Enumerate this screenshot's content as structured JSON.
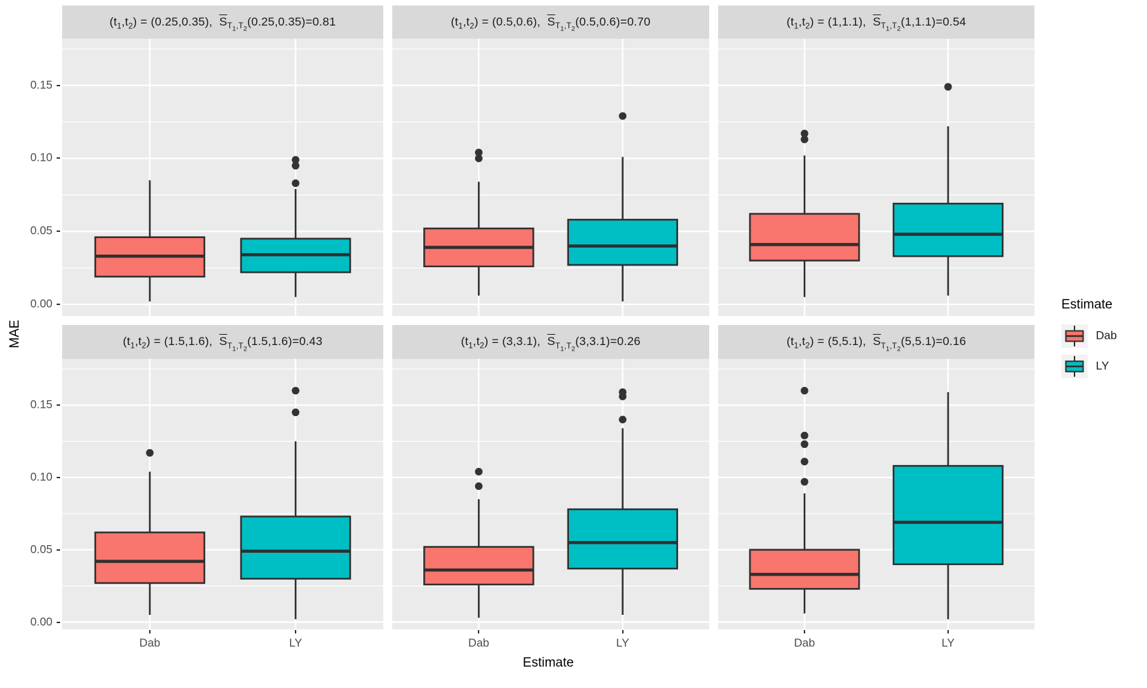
{
  "colors": {
    "dab_fill": "#F8766D",
    "ly_fill": "#00BFC4",
    "panel_bg": "#EBEBEB",
    "strip_bg": "#D9D9D9",
    "grid": "#FFFFFF",
    "box_stroke": "#2F2F2F",
    "outlier": "#333333",
    "axis_text": "#4D4D4D",
    "title_text": "#000000",
    "legend_key_bg": "#F2F2F2"
  },
  "chart_data": {
    "type": "boxplot",
    "facet_layout": {
      "rows": 2,
      "cols": 3
    },
    "categories": [
      "Dab",
      "LY"
    ],
    "xlabel": "Estimate",
    "ylabel": "MAE",
    "ylim": [
      -0.008,
      0.182
    ],
    "yticks": [
      {
        "v": 0.0,
        "label": "0.00"
      },
      {
        "v": 0.05,
        "label": "0.05"
      },
      {
        "v": 0.1,
        "label": "0.10"
      },
      {
        "v": 0.15,
        "label": "0.15"
      }
    ],
    "yminor": [
      0.025,
      0.075,
      0.125,
      0.175
    ],
    "grid": "white major+minor horizontal, white vertical at categories, on grey panel",
    "legend": {
      "title": "Estimate",
      "position": "right",
      "entries": [
        {
          "label": "Dab",
          "color": "#F8766D"
        },
        {
          "label": "LY",
          "color": "#00BFC4"
        }
      ]
    },
    "facet_title_template": "(t1,t2) = ({t1},{t2}),  S̄_T1,T2({t1},{t2})={sbar}",
    "facets": [
      {
        "t1": "0.25",
        "t2": "0.35",
        "sbar": "0.81",
        "boxes": [
          {
            "group": "Dab",
            "whisker_low": 0.002,
            "q1": 0.019,
            "median": 0.033,
            "q3": 0.046,
            "whisker_high": 0.085,
            "outliers": []
          },
          {
            "group": "LY",
            "whisker_low": 0.005,
            "q1": 0.022,
            "median": 0.034,
            "q3": 0.045,
            "whisker_high": 0.079,
            "outliers": [
              0.083,
              0.095,
              0.099
            ]
          }
        ]
      },
      {
        "t1": "0.5",
        "t2": "0.6",
        "sbar": "0.70",
        "boxes": [
          {
            "group": "Dab",
            "whisker_low": 0.006,
            "q1": 0.026,
            "median": 0.039,
            "q3": 0.052,
            "whisker_high": 0.084,
            "outliers": [
              0.1,
              0.104
            ]
          },
          {
            "group": "LY",
            "whisker_low": 0.002,
            "q1": 0.027,
            "median": 0.04,
            "q3": 0.058,
            "whisker_high": 0.101,
            "outliers": [
              0.129
            ]
          }
        ]
      },
      {
        "t1": "1",
        "t2": "1.1",
        "sbar": "0.54",
        "boxes": [
          {
            "group": "Dab",
            "whisker_low": 0.005,
            "q1": 0.03,
            "median": 0.041,
            "q3": 0.062,
            "whisker_high": 0.102,
            "outliers": [
              0.113,
              0.117
            ]
          },
          {
            "group": "LY",
            "whisker_low": 0.006,
            "q1": 0.033,
            "median": 0.048,
            "q3": 0.069,
            "whisker_high": 0.122,
            "outliers": [
              0.149
            ]
          }
        ]
      },
      {
        "t1": "1.5",
        "t2": "1.6",
        "sbar": "0.43",
        "boxes": [
          {
            "group": "Dab",
            "whisker_low": 0.005,
            "q1": 0.027,
            "median": 0.042,
            "q3": 0.062,
            "whisker_high": 0.104,
            "outliers": [
              0.117
            ]
          },
          {
            "group": "LY",
            "whisker_low": 0.002,
            "q1": 0.03,
            "median": 0.049,
            "q3": 0.073,
            "whisker_high": 0.125,
            "outliers": [
              0.145,
              0.16
            ]
          }
        ]
      },
      {
        "t1": "3",
        "t2": "3.1",
        "sbar": "0.26",
        "boxes": [
          {
            "group": "Dab",
            "whisker_low": 0.003,
            "q1": 0.026,
            "median": 0.036,
            "q3": 0.052,
            "whisker_high": 0.085,
            "outliers": [
              0.094,
              0.104
            ]
          },
          {
            "group": "LY",
            "whisker_low": 0.005,
            "q1": 0.037,
            "median": 0.055,
            "q3": 0.078,
            "whisker_high": 0.134,
            "outliers": [
              0.14,
              0.156,
              0.159
            ]
          }
        ]
      },
      {
        "t1": "5",
        "t2": "5.1",
        "sbar": "0.16",
        "boxes": [
          {
            "group": "Dab",
            "whisker_low": 0.006,
            "q1": 0.023,
            "median": 0.033,
            "q3": 0.05,
            "whisker_high": 0.089,
            "outliers": [
              0.097,
              0.111,
              0.123,
              0.129,
              0.16
            ]
          },
          {
            "group": "LY",
            "whisker_low": 0.002,
            "q1": 0.04,
            "median": 0.069,
            "q3": 0.108,
            "whisker_high": 0.159,
            "outliers": []
          }
        ]
      }
    ]
  }
}
